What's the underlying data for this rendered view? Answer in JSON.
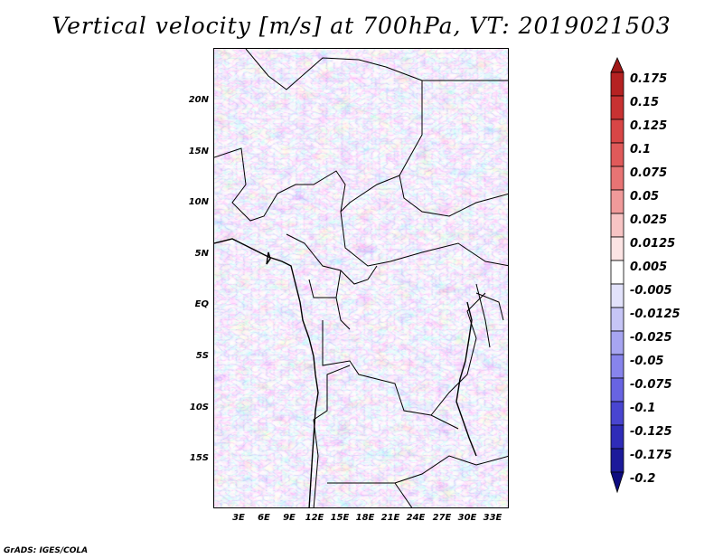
{
  "title": "Vertical velocity [m/s] at 700hPa, VT: 2019021503",
  "credit": "GrADS: IGES/COLA",
  "map": {
    "lat_ticks": [
      "20N",
      "15N",
      "10N",
      "5N",
      "EQ",
      "5S",
      "10S",
      "15S"
    ],
    "lon_ticks": [
      "3E",
      "6E",
      "9E",
      "12E",
      "15E",
      "18E",
      "21E",
      "24E",
      "27E",
      "30E",
      "33E"
    ],
    "field": "vertical velocity",
    "positive_color": "#d9473f",
    "negative_color": "#5a56e0"
  },
  "colorbar": {
    "levels": [
      "0.175",
      "0.15",
      "0.125",
      "0.1",
      "0.075",
      "0.05",
      "0.025",
      "0.0125",
      "0.005",
      "-0.005",
      "-0.0125",
      "-0.025",
      "-0.05",
      "-0.075",
      "-0.1",
      "-0.125",
      "-0.175",
      "-0.2"
    ],
    "colors": [
      "#a01818",
      "#b52222",
      "#c83232",
      "#d84646",
      "#e05a5a",
      "#e87474",
      "#f09a9a",
      "#f7c4c4",
      "#fce4e4",
      "#ffffff",
      "#e2e2fb",
      "#c6c5f6",
      "#a7a5f1",
      "#8784ec",
      "#6864e2",
      "#4945d0",
      "#2f2cb8",
      "#1c1a9a",
      "#0e0c80"
    ]
  }
}
